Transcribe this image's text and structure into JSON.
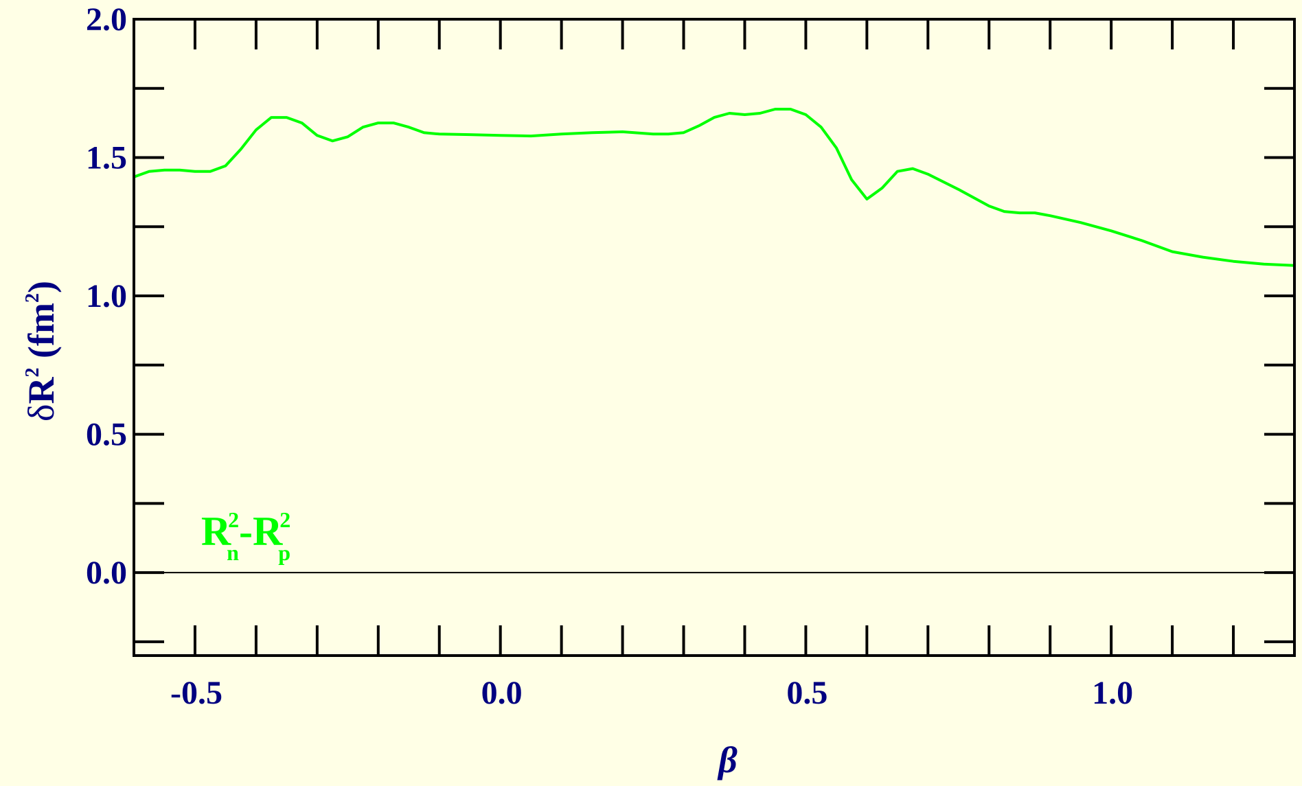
{
  "chart_data": {
    "type": "line",
    "xlabel": "β",
    "ylabel_parts": {
      "delta": "δ",
      "R": "R",
      "sup1": "2",
      "open": " (fm",
      "sup2": "2",
      "close": ")"
    },
    "xlim": [
      -0.6,
      1.3
    ],
    "ylim": [
      -0.3,
      2.0
    ],
    "x_ticks": [
      -0.5,
      0.0,
      0.5,
      1.0
    ],
    "x_tick_labels": [
      "-0.5",
      "0.0",
      "0.5",
      "1.0"
    ],
    "x_minor_step": 0.1,
    "y_ticks": [
      0.0,
      0.5,
      1.0,
      1.5,
      2.0
    ],
    "y_tick_labels": [
      "0.0",
      "0.5",
      "1.0",
      "1.5",
      "2.0"
    ],
    "y_minor_step": 0.25,
    "reference_line_y": 0.0,
    "series_label_parts": {
      "R1": "R",
      "sup1": "2",
      "sub1": "n",
      "dash": "-",
      "R2": "R",
      "sup2": "2",
      "sub2": "p"
    },
    "series": [
      {
        "name": "R2n-R2p",
        "color": "#00ff00",
        "x": [
          -0.6,
          -0.575,
          -0.55,
          -0.525,
          -0.5,
          -0.475,
          -0.45,
          -0.425,
          -0.4,
          -0.375,
          -0.35,
          -0.325,
          -0.3,
          -0.275,
          -0.25,
          -0.225,
          -0.2,
          -0.175,
          -0.15,
          -0.125,
          -0.1,
          -0.05,
          0.0,
          0.05,
          0.1,
          0.15,
          0.2,
          0.25,
          0.275,
          0.3,
          0.325,
          0.35,
          0.375,
          0.4,
          0.425,
          0.45,
          0.475,
          0.5,
          0.525,
          0.55,
          0.575,
          0.6,
          0.625,
          0.65,
          0.675,
          0.7,
          0.75,
          0.8,
          0.825,
          0.85,
          0.875,
          0.9,
          0.95,
          1.0,
          1.05,
          1.1,
          1.15,
          1.2,
          1.25,
          1.3
        ],
        "y": [
          1.43,
          1.45,
          1.455,
          1.455,
          1.45,
          1.45,
          1.47,
          1.53,
          1.6,
          1.645,
          1.645,
          1.625,
          1.58,
          1.56,
          1.575,
          1.61,
          1.625,
          1.625,
          1.61,
          1.59,
          1.585,
          1.583,
          1.58,
          1.578,
          1.585,
          1.59,
          1.593,
          1.585,
          1.585,
          1.59,
          1.615,
          1.645,
          1.66,
          1.655,
          1.66,
          1.675,
          1.675,
          1.655,
          1.61,
          1.535,
          1.42,
          1.35,
          1.39,
          1.45,
          1.46,
          1.44,
          1.385,
          1.325,
          1.305,
          1.3,
          1.3,
          1.29,
          1.265,
          1.235,
          1.2,
          1.16,
          1.14,
          1.125,
          1.115,
          1.11
        ]
      }
    ]
  }
}
